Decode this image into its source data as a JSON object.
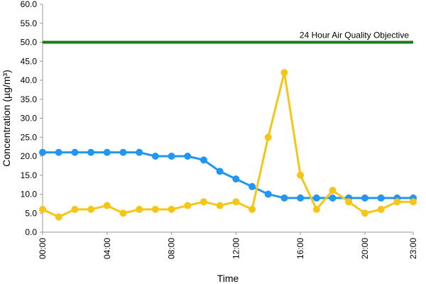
{
  "chart_data": {
    "type": "line",
    "xlabel": "Time",
    "ylabel": "Concentration (µg/m³)",
    "xlim": [
      0,
      23
    ],
    "ylim": [
      0,
      60
    ],
    "y_ticks": [
      "0.0",
      "5.0",
      "10.0",
      "15.0",
      "20.0",
      "25.0",
      "30.0",
      "35.0",
      "40.0",
      "45.0",
      "50.0",
      "55.0",
      "60.0"
    ],
    "x_ticks": [
      "00:00",
      "04:00",
      "08:00",
      "12:00",
      "16:00",
      "20:00",
      "23:00"
    ],
    "x_tick_hours": [
      0,
      4,
      8,
      12,
      16,
      20,
      23
    ],
    "x": [
      0,
      1,
      2,
      3,
      4,
      5,
      6,
      7,
      8,
      9,
      10,
      11,
      12,
      13,
      14,
      15,
      16,
      17,
      18,
      19,
      20,
      21,
      22,
      23
    ],
    "series": [
      {
        "color": "#2196f3",
        "values": [
          21,
          21,
          21,
          21,
          21,
          21,
          21,
          20,
          20,
          20,
          19,
          16,
          14,
          12,
          10,
          9,
          9,
          9,
          9,
          9,
          9,
          9,
          9,
          9
        ]
      },
      {
        "color": "#f5c518",
        "values": [
          6,
          4,
          6,
          6,
          7,
          5,
          6,
          6,
          6,
          7,
          8,
          7,
          8,
          6,
          25,
          42,
          15,
          6,
          11,
          8,
          5,
          6,
          8,
          8
        ]
      }
    ],
    "reference_line": {
      "value": 50,
      "label": "24 Hour Air Quality Objective",
      "color": "#1a7a1a"
    },
    "grid": false
  }
}
